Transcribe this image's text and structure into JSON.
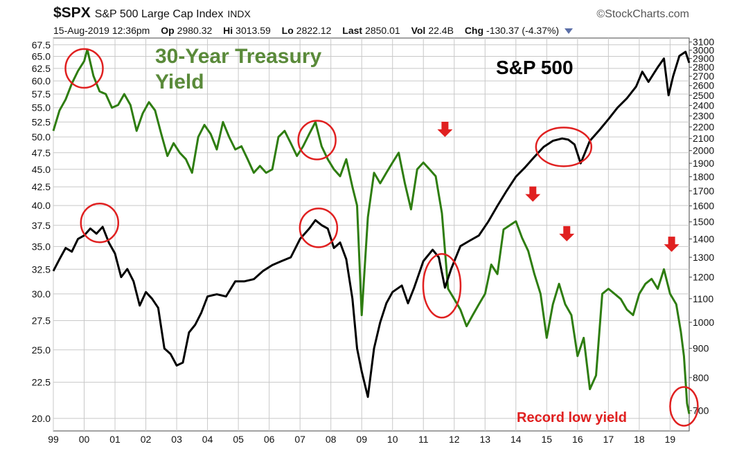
{
  "header": {
    "symbol": "$SPX",
    "index_name": "S&P 500 Large Cap Index",
    "index_type": "INDX",
    "brand": "StockCharts.com",
    "brand_mark": "©",
    "datetime": "15-Aug-2019 12:36pm",
    "open_label": "Op",
    "open_value": "2980.32",
    "high_label": "Hi",
    "high_value": "3013.59",
    "low_label": "Lo",
    "low_value": "2822.12",
    "last_label": "Last",
    "last_value": "2850.01",
    "vol_label": "Vol",
    "vol_value": "22.4B",
    "chg_label": "Chg",
    "chg_value": "-130.37 (-4.37%)"
  },
  "colors": {
    "treasury": "#2e7d10",
    "sp500": "#000000",
    "treasury_label": "#5a8a3a",
    "annotation": "#e02020",
    "grid": "#c8c8c8",
    "background": "#ffffff"
  },
  "chart_data": {
    "type": "line",
    "x_axis": {
      "ticks": [
        "99",
        "00",
        "01",
        "02",
        "03",
        "04",
        "05",
        "06",
        "07",
        "08",
        "09",
        "10",
        "11",
        "12",
        "13",
        "14",
        "15",
        "16",
        "17",
        "18",
        "19"
      ],
      "range": [
        1999,
        2019.62
      ]
    },
    "left_axis": {
      "ticks": [
        "67.5",
        "65.0",
        "62.5",
        "60.0",
        "57.5",
        "55.0",
        "52.5",
        "50.0",
        "47.5",
        "45.0",
        "42.5",
        "40.0",
        "37.5",
        "35.0",
        "32.5",
        "30.0",
        "27.5",
        "25.0",
        "22.5",
        "20.0"
      ],
      "range": [
        19.2,
        69.0
      ],
      "scale": "log"
    },
    "right_axis": {
      "ticks": [
        "3100",
        "3000",
        "2900",
        "2800",
        "2700",
        "2600",
        "2500",
        "2400",
        "2300",
        "2200",
        "2100",
        "2000",
        "1900",
        "1800",
        "1700",
        "1600",
        "1500",
        "1400",
        "1300",
        "1200",
        "1100",
        "1000",
        "900",
        "800",
        "700"
      ],
      "range": [
        645,
        3150
      ],
      "scale": "log"
    },
    "grid": true,
    "series": [
      {
        "name": "30-Year Treasury Yield",
        "axis": "left",
        "x": [
          1999.0,
          1999.2,
          1999.4,
          1999.6,
          1999.8,
          2000.0,
          2000.1,
          2000.3,
          2000.5,
          2000.7,
          2000.9,
          2001.1,
          2001.3,
          2001.5,
          2001.7,
          2001.9,
          2002.1,
          2002.3,
          2002.5,
          2002.7,
          2002.9,
          2003.1,
          2003.3,
          2003.5,
          2003.7,
          2003.9,
          2004.1,
          2004.3,
          2004.5,
          2004.7,
          2004.9,
          2005.1,
          2005.3,
          2005.5,
          2005.7,
          2005.9,
          2006.1,
          2006.3,
          2006.5,
          2006.7,
          2006.9,
          2007.1,
          2007.3,
          2007.5,
          2007.7,
          2007.9,
          2008.1,
          2008.3,
          2008.5,
          2008.7,
          2008.85,
          2009.0,
          2009.2,
          2009.4,
          2009.6,
          2009.8,
          2010.0,
          2010.2,
          2010.4,
          2010.6,
          2010.8,
          2011.0,
          2011.2,
          2011.4,
          2011.6,
          2011.8,
          2012.0,
          2012.2,
          2012.4,
          2012.6,
          2012.8,
          2013.0,
          2013.2,
          2013.4,
          2013.6,
          2013.8,
          2014.0,
          2014.2,
          2014.4,
          2014.6,
          2014.8,
          2015.0,
          2015.2,
          2015.4,
          2015.6,
          2015.8,
          2016.0,
          2016.2,
          2016.4,
          2016.6,
          2016.8,
          2017.0,
          2017.2,
          2017.4,
          2017.6,
          2017.8,
          2018.0,
          2018.2,
          2018.4,
          2018.6,
          2018.8,
          2019.0,
          2019.2,
          2019.35,
          2019.45,
          2019.55,
          2019.62
        ],
        "values": [
          51.0,
          54.5,
          56.5,
          59.5,
          62.0,
          64.0,
          66.5,
          61.0,
          58.0,
          57.5,
          55.0,
          55.5,
          57.5,
          55.5,
          51.0,
          54.0,
          56.0,
          54.5,
          50.5,
          47.0,
          49.0,
          47.5,
          46.5,
          44.5,
          50.0,
          52.0,
          50.5,
          48.0,
          52.5,
          50.0,
          48.0,
          48.5,
          46.5,
          44.5,
          45.5,
          44.5,
          45.0,
          50.0,
          51.0,
          49.0,
          47.0,
          48.5,
          50.5,
          52.5,
          48.5,
          46.5,
          45.0,
          44.0,
          46.5,
          42.5,
          40.0,
          28.0,
          38.5,
          44.5,
          43.0,
          44.5,
          46.0,
          47.5,
          43.0,
          39.5,
          45.0,
          46.0,
          45.0,
          44.0,
          39.0,
          30.5,
          29.5,
          28.5,
          27.0,
          28.0,
          29.0,
          30.0,
          33.0,
          32.0,
          37.0,
          37.5,
          38.0,
          36.0,
          34.5,
          32.0,
          30.0,
          26.0,
          29.0,
          31.0,
          29.0,
          28.0,
          24.5,
          26.0,
          22.0,
          23.0,
          30.0,
          30.5,
          30.0,
          29.5,
          28.5,
          28.0,
          30.0,
          31.0,
          31.5,
          30.5,
          32.5,
          30.0,
          29.0,
          26.5,
          24.5,
          21.0,
          20.3
        ]
      },
      {
        "name": "S&P 500",
        "axis": "right",
        "x": [
          1999.0,
          1999.2,
          1999.4,
          1999.6,
          1999.8,
          2000.0,
          2000.2,
          2000.4,
          2000.6,
          2000.8,
          2001.0,
          2001.2,
          2001.4,
          2001.6,
          2001.8,
          2002.0,
          2002.2,
          2002.4,
          2002.6,
          2002.8,
          2003.0,
          2003.2,
          2003.4,
          2003.6,
          2003.8,
          2004.0,
          2004.3,
          2004.6,
          2004.9,
          2005.2,
          2005.5,
          2005.8,
          2006.1,
          2006.4,
          2006.7,
          2007.0,
          2007.3,
          2007.5,
          2007.7,
          2007.9,
          2008.1,
          2008.3,
          2008.5,
          2008.7,
          2008.85,
          2009.0,
          2009.2,
          2009.4,
          2009.6,
          2009.8,
          2010.0,
          2010.3,
          2010.5,
          2010.7,
          2011.0,
          2011.3,
          2011.5,
          2011.7,
          2011.9,
          2012.2,
          2012.5,
          2012.8,
          2013.1,
          2013.4,
          2013.7,
          2014.0,
          2014.3,
          2014.6,
          2014.9,
          2015.2,
          2015.5,
          2015.7,
          2015.9,
          2016.1,
          2016.4,
          2016.7,
          2017.0,
          2017.3,
          2017.6,
          2017.9,
          2018.1,
          2018.3,
          2018.6,
          2018.8,
          2018.95,
          2019.1,
          2019.3,
          2019.5,
          2019.62
        ],
        "values": [
          1230,
          1290,
          1350,
          1330,
          1400,
          1420,
          1460,
          1430,
          1470,
          1380,
          1320,
          1200,
          1240,
          1180,
          1070,
          1130,
          1100,
          1060,
          900,
          880,
          840,
          850,
          960,
          990,
          1040,
          1110,
          1120,
          1110,
          1180,
          1180,
          1190,
          1230,
          1260,
          1280,
          1300,
          1400,
          1460,
          1510,
          1480,
          1460,
          1350,
          1380,
          1290,
          1100,
          900,
          820,
          740,
          900,
          1000,
          1080,
          1130,
          1160,
          1080,
          1150,
          1280,
          1340,
          1300,
          1150,
          1240,
          1360,
          1390,
          1420,
          1500,
          1600,
          1700,
          1800,
          1870,
          1950,
          2030,
          2080,
          2100,
          2090,
          2050,
          1900,
          2080,
          2170,
          2270,
          2380,
          2470,
          2590,
          2750,
          2640,
          2800,
          2900,
          2500,
          2700,
          2930,
          2980,
          2850
        ]
      }
    ],
    "annotations": {
      "treasury_label_line1": "30-Year Treasury",
      "treasury_label_line2": "Yield",
      "sp500_label": "S&P 500",
      "record_low": "Record low yield",
      "circles": [
        {
          "x": 2000.0,
          "y": 62.5,
          "axis": "left"
        },
        {
          "x": 2000.5,
          "y": 37.8,
          "axis": "left"
        },
        {
          "x": 2007.55,
          "y": 49.5,
          "axis": "left"
        },
        {
          "x": 2007.6,
          "y": 37.2,
          "axis": "left"
        },
        {
          "x": 2011.6,
          "y": 30.8,
          "axis": "left"
        },
        {
          "x": 2015.55,
          "y": 2030,
          "axis": "right"
        },
        {
          "x": 2019.45,
          "y": 20.8,
          "axis": "left"
        }
      ],
      "arrows": [
        {
          "x": 2011.7,
          "y": 50.0,
          "axis": "left"
        },
        {
          "x": 2014.55,
          "y": 40.5,
          "axis": "left"
        },
        {
          "x": 2015.65,
          "y": 35.6,
          "axis": "left"
        },
        {
          "x": 2019.05,
          "y": 34.4,
          "axis": "left"
        }
      ]
    }
  }
}
